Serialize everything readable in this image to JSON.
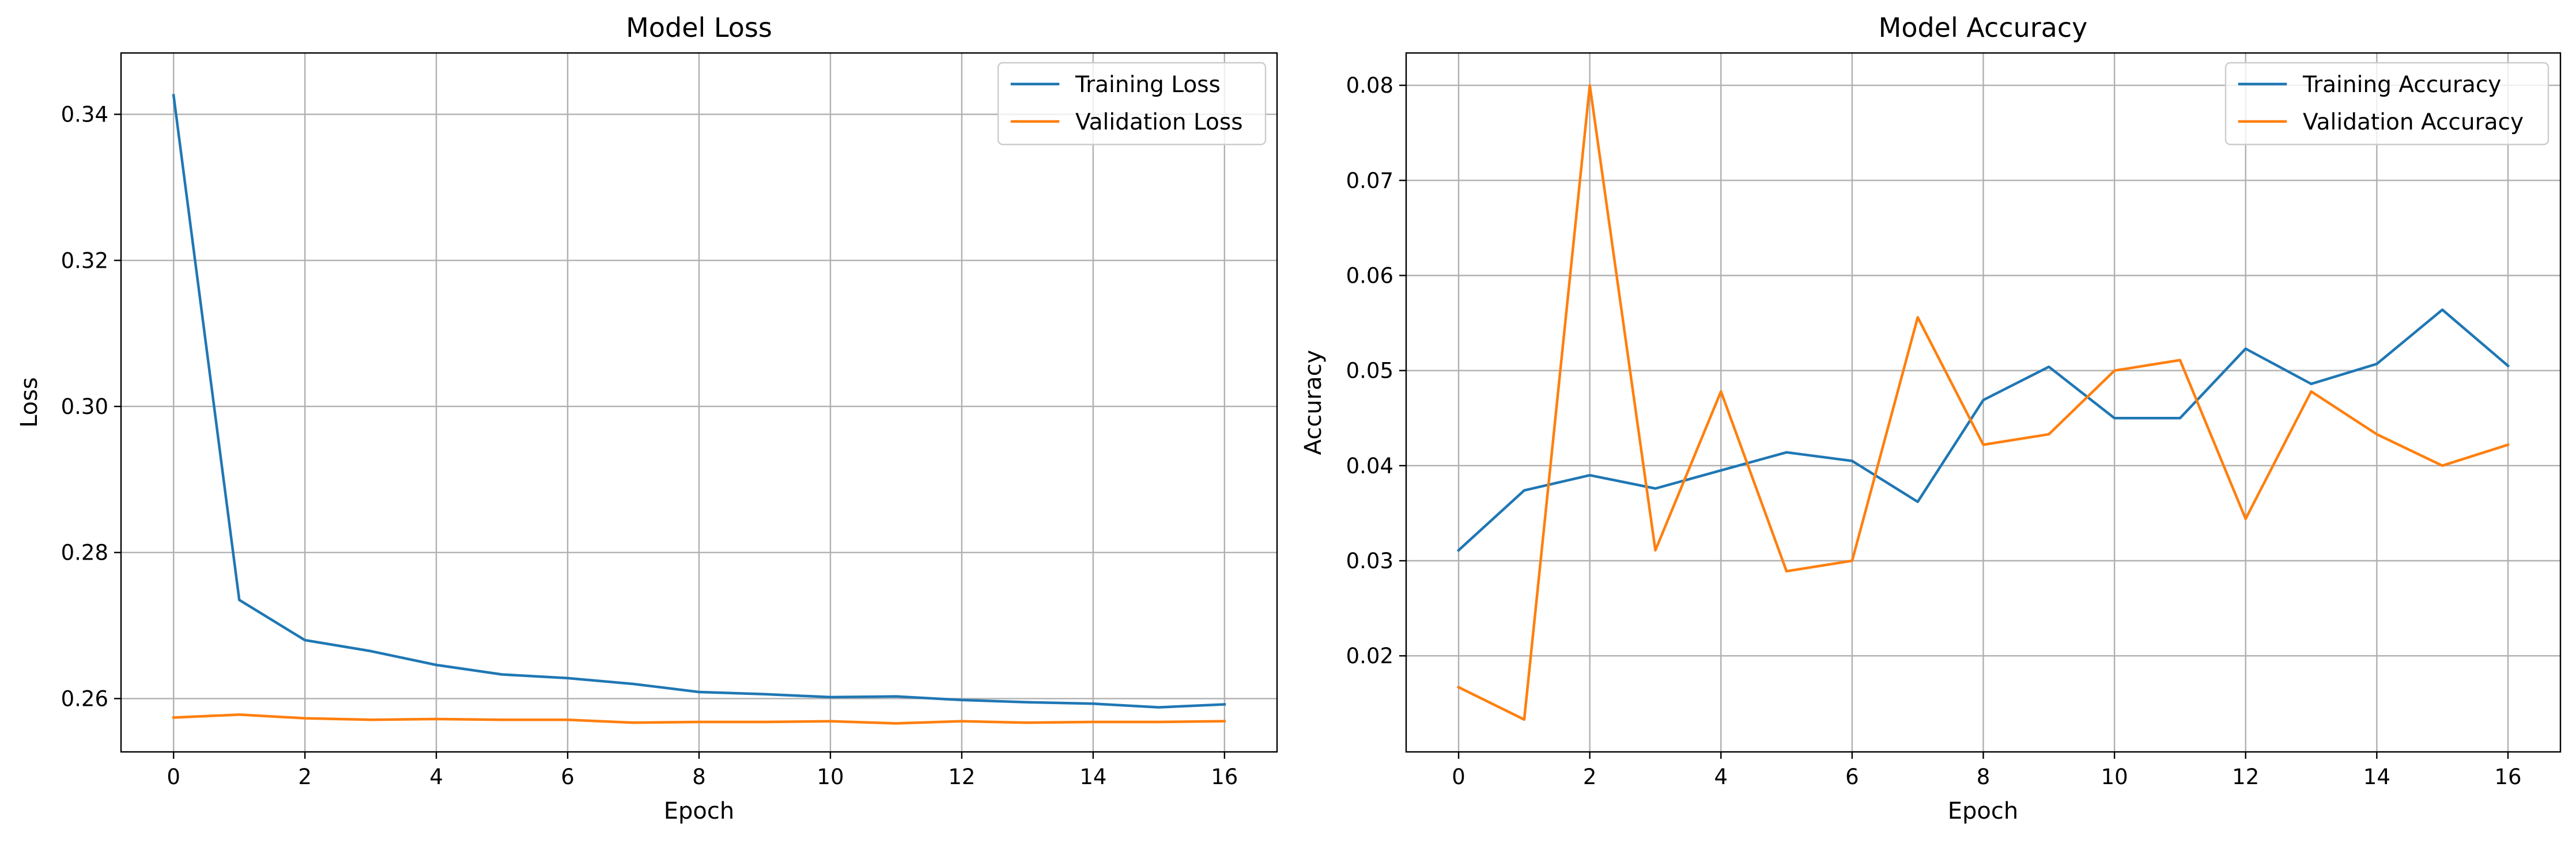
{
  "chart_data": [
    {
      "type": "line",
      "title": "Model Loss",
      "xlabel": "Epoch",
      "ylabel": "Loss",
      "xlim": [
        -0.8,
        16.8
      ],
      "ylim": [
        0.2527,
        0.3484
      ],
      "xticks": [
        0,
        2,
        4,
        6,
        8,
        10,
        12,
        14,
        16
      ],
      "xtick_labels": [
        "0",
        "2",
        "4",
        "6",
        "8",
        "10",
        "12",
        "14",
        "16"
      ],
      "yticks": [
        0.26,
        0.28,
        0.3,
        0.32,
        0.34
      ],
      "ytick_labels": [
        "0.26",
        "0.28",
        "0.30",
        "0.32",
        "0.34"
      ],
      "grid": true,
      "legend_position": "top-right",
      "x": [
        0,
        1,
        2,
        3,
        4,
        5,
        6,
        7,
        8,
        9,
        10,
        11,
        12,
        13,
        14,
        15,
        16
      ],
      "series": [
        {
          "name": "Training Loss",
          "color": "#1f77b4",
          "values": [
            0.3426,
            0.2735,
            0.268,
            0.2665,
            0.2646,
            0.2633,
            0.2628,
            0.262,
            0.2609,
            0.2606,
            0.2602,
            0.2603,
            0.2598,
            0.2595,
            0.2593,
            0.2588,
            0.2592
          ]
        },
        {
          "name": "Validation Loss",
          "color": "#ff7f0e",
          "values": [
            0.2574,
            0.2578,
            0.2573,
            0.2571,
            0.2572,
            0.2571,
            0.2571,
            0.2567,
            0.2568,
            0.2568,
            0.2569,
            0.2566,
            0.2569,
            0.2567,
            0.2568,
            0.2568,
            0.2569
          ]
        }
      ]
    },
    {
      "type": "line",
      "title": "Model Accuracy",
      "xlabel": "Epoch",
      "ylabel": "Accuracy",
      "xlim": [
        -0.8,
        16.8
      ],
      "ylim": [
        0.0099,
        0.0834
      ],
      "xticks": [
        0,
        2,
        4,
        6,
        8,
        10,
        12,
        14,
        16
      ],
      "xtick_labels": [
        "0",
        "2",
        "4",
        "6",
        "8",
        "10",
        "12",
        "14",
        "16"
      ],
      "yticks": [
        0.02,
        0.03,
        0.04,
        0.05,
        0.06,
        0.07,
        0.08
      ],
      "ytick_labels": [
        "0.02",
        "0.03",
        "0.04",
        "0.05",
        "0.06",
        "0.07",
        "0.08"
      ],
      "grid": true,
      "legend_position": "top-right",
      "x": [
        0,
        1,
        2,
        3,
        4,
        5,
        6,
        7,
        8,
        9,
        10,
        11,
        12,
        13,
        14,
        15,
        16
      ],
      "series": [
        {
          "name": "Training Accuracy",
          "color": "#1f77b4",
          "values": [
            0.0311,
            0.0374,
            0.039,
            0.0376,
            0.0395,
            0.0414,
            0.0405,
            0.0362,
            0.0469,
            0.0504,
            0.045,
            0.045,
            0.0523,
            0.0486,
            0.0507,
            0.0564,
            0.0505
          ]
        },
        {
          "name": "Validation Accuracy",
          "color": "#ff7f0e",
          "values": [
            0.0167,
            0.0133,
            0.08,
            0.0311,
            0.0478,
            0.0289,
            0.03,
            0.0556,
            0.0422,
            0.0433,
            0.05,
            0.0511,
            0.0344,
            0.0478,
            0.0433,
            0.04,
            0.0422
          ]
        }
      ]
    }
  ]
}
